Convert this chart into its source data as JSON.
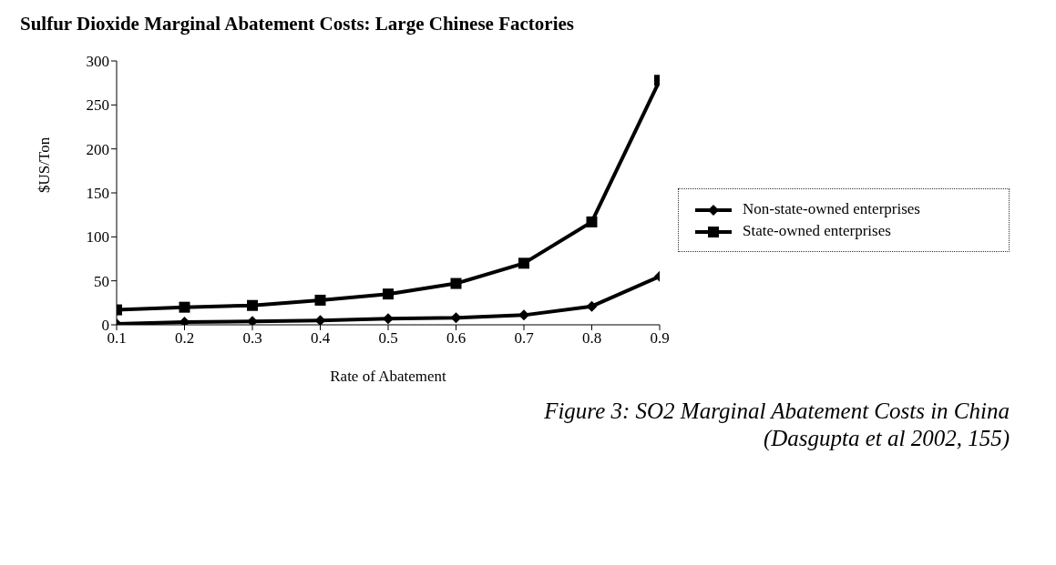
{
  "chart_data": {
    "type": "line",
    "title": "Sulfur Dioxide Marginal Abatement Costs: Large Chinese Factories",
    "xlabel": "Rate of Abatement",
    "ylabel": "$US/Ton",
    "x": [
      0.1,
      0.2,
      0.3,
      0.4,
      0.5,
      0.6,
      0.7,
      0.8,
      0.9
    ],
    "series": [
      {
        "name": "Non-state-owned enterprises",
        "color": "#000000",
        "marker": "diamond",
        "values": [
          1,
          3,
          4,
          5,
          7,
          8,
          11,
          21,
          55
        ]
      },
      {
        "name": "State-owned enterprises",
        "color": "#000000",
        "marker": "square",
        "values": [
          17,
          20,
          22,
          28,
          35,
          47,
          70,
          117,
          278
        ]
      }
    ],
    "xlim": [
      0.1,
      0.9
    ],
    "xticks": [
      0.1,
      0.2,
      0.3,
      0.4,
      0.5,
      0.6,
      0.7,
      0.8,
      0.9
    ],
    "ylim": [
      0,
      300
    ],
    "yticks": [
      0,
      50,
      100,
      150,
      200,
      250,
      300
    ],
    "grid": false,
    "legend": "right",
    "line_style": "solid",
    "annotations": [
      "Figure 3: SO2 Marginal Abatement Costs in China",
      "(Dasgupta et al 2002, 155)"
    ]
  }
}
